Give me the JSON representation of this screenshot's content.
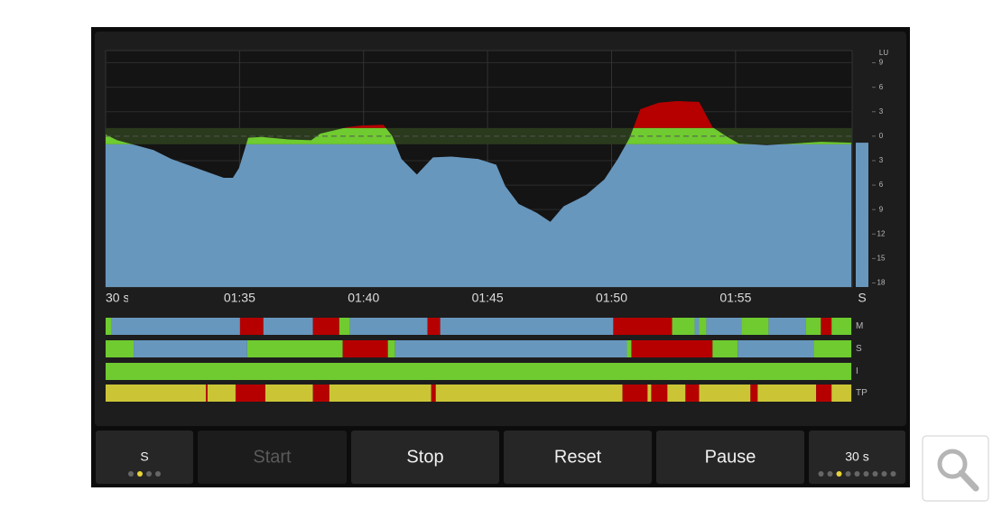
{
  "chart_data": {
    "type": "area",
    "x": [
      89.6,
      90.07,
      90.8,
      91.53,
      92.25,
      92.98,
      93.71,
      94.36,
      94.73,
      94.98,
      95.35,
      95.89,
      96.98,
      97.89,
      98.25,
      98.8,
      99.35,
      99.89,
      100.8,
      101.16,
      101.53,
      102.15,
      102.8,
      103.53,
      104.62,
      105.35,
      105.71,
      106.25,
      106.98,
      107.53,
      108.07,
      108.98,
      109.71,
      110.25,
      110.73,
      111.16,
      111.89,
      112.62,
      113.53,
      114.07,
      114.62,
      115.13,
      116.25,
      117.35,
      118.44,
      119.67
    ],
    "values": [
      0.2,
      -0.5,
      -1.1,
      -1.7,
      -2.8,
      -3.6,
      -4.4,
      -5.1,
      -5.1,
      -3.9,
      -0.2,
      -0.1,
      -0.4,
      -0.5,
      0.3,
      0.7,
      1.1,
      1.3,
      1.4,
      0,
      -2.8,
      -4.7,
      -2.6,
      -2.5,
      -2.8,
      -3.5,
      -6.1,
      -8.3,
      -9.4,
      -10.5,
      -8.6,
      -7.2,
      -5.3,
      -2.8,
      -0.2,
      3.3,
      4.1,
      4.3,
      4.2,
      1.1,
      0,
      -0.9,
      -1.1,
      -0.9,
      -0.7,
      -0.8
    ],
    "xlim": [
      89.6,
      119.7
    ],
    "xticks": [
      {
        "value": 95,
        "label": "01:35"
      },
      {
        "value": 100,
        "label": "01:40"
      },
      {
        "value": 105,
        "label": "01:45"
      },
      {
        "value": 110,
        "label": "01:50"
      },
      {
        "value": 115,
        "label": "01:55"
      }
    ],
    "ylim": [
      -18.5,
      10.5
    ],
    "yticks": [
      9,
      6,
      3,
      0,
      {
        "value": -3,
        "label": "3"
      },
      {
        "value": -6,
        "label": "6"
      },
      {
        "value": -9,
        "label": "9"
      },
      {
        "value": -12,
        "label": "12"
      },
      {
        "value": -15,
        "label": "15"
      },
      {
        "value": -18,
        "label": "18"
      }
    ],
    "y_axis_label": "LU",
    "window_label": "30 s",
    "current_label": "S",
    "current": -0.8,
    "target": 0,
    "target_band": [
      -1,
      1
    ],
    "colors": {
      "below": "#6897bd",
      "in_band": "#6fcb30",
      "above": "#b60000"
    },
    "grid": true
  },
  "meter_bars": {
    "rows": [
      {
        "label": "M",
        "segments": [
          {
            "from": 89.6,
            "to": 89.85,
            "color": "#6fcb30"
          },
          {
            "from": 89.85,
            "to": 95.02,
            "color": "#6897bd"
          },
          {
            "from": 95.02,
            "to": 95.96,
            "color": "#b60000"
          },
          {
            "from": 95.96,
            "to": 97.96,
            "color": "#6897bd"
          },
          {
            "from": 97.96,
            "to": 99.02,
            "color": "#b60000"
          },
          {
            "from": 99.02,
            "to": 99.45,
            "color": "#6fcb30"
          },
          {
            "from": 99.45,
            "to": 102.58,
            "color": "#6897bd"
          },
          {
            "from": 102.58,
            "to": 103.09,
            "color": "#b60000"
          },
          {
            "from": 103.09,
            "to": 110.07,
            "color": "#6897bd"
          },
          {
            "from": 110.07,
            "to": 112.44,
            "color": "#b60000"
          },
          {
            "from": 112.44,
            "to": 113.35,
            "color": "#6fcb30"
          },
          {
            "from": 113.35,
            "to": 113.53,
            "color": "#6897bd"
          },
          {
            "from": 113.53,
            "to": 113.82,
            "color": "#6fcb30"
          },
          {
            "from": 113.82,
            "to": 115.24,
            "color": "#6897bd"
          },
          {
            "from": 115.24,
            "to": 116.33,
            "color": "#6fcb30"
          },
          {
            "from": 116.33,
            "to": 117.82,
            "color": "#6897bd"
          },
          {
            "from": 117.82,
            "to": 118.44,
            "color": "#6fcb30"
          },
          {
            "from": 118.44,
            "to": 118.87,
            "color": "#b60000"
          },
          {
            "from": 118.87,
            "to": 119.67,
            "color": "#6fcb30"
          }
        ]
      },
      {
        "label": "S",
        "segments": [
          {
            "from": 89.6,
            "to": 90.73,
            "color": "#6fcb30"
          },
          {
            "from": 90.73,
            "to": 95.31,
            "color": "#6897bd"
          },
          {
            "from": 95.31,
            "to": 99.16,
            "color": "#6fcb30"
          },
          {
            "from": 99.16,
            "to": 100.98,
            "color": "#b60000"
          },
          {
            "from": 100.98,
            "to": 101.27,
            "color": "#6fcb30"
          },
          {
            "from": 101.27,
            "to": 110.62,
            "color": "#6897bd"
          },
          {
            "from": 110.62,
            "to": 110.8,
            "color": "#6fcb30"
          },
          {
            "from": 110.8,
            "to": 114.07,
            "color": "#b60000"
          },
          {
            "from": 114.07,
            "to": 115.09,
            "color": "#6fcb30"
          },
          {
            "from": 115.09,
            "to": 118.15,
            "color": "#6897bd"
          },
          {
            "from": 118.15,
            "to": 119.67,
            "color": "#6fcb30"
          }
        ]
      },
      {
        "label": "I",
        "segments": [
          {
            "from": 89.6,
            "to": 119.67,
            "color": "#6fcb30"
          }
        ]
      },
      {
        "label": "TP",
        "segments": [
          {
            "from": 89.6,
            "to": 93.64,
            "color": "#cbc536"
          },
          {
            "from": 93.64,
            "to": 93.71,
            "color": "#b60000"
          },
          {
            "from": 93.71,
            "to": 94.84,
            "color": "#cbc536"
          },
          {
            "from": 94.84,
            "to": 96.04,
            "color": "#b60000"
          },
          {
            "from": 96.04,
            "to": 97.96,
            "color": "#cbc536"
          },
          {
            "from": 97.96,
            "to": 98.62,
            "color": "#b60000"
          },
          {
            "from": 98.62,
            "to": 102.73,
            "color": "#cbc536"
          },
          {
            "from": 102.73,
            "to": 102.91,
            "color": "#b60000"
          },
          {
            "from": 102.91,
            "to": 110.44,
            "color": "#cbc536"
          },
          {
            "from": 110.44,
            "to": 111.45,
            "color": "#b60000"
          },
          {
            "from": 111.45,
            "to": 111.6,
            "color": "#cbc536"
          },
          {
            "from": 111.6,
            "to": 112.25,
            "color": "#b60000"
          },
          {
            "from": 112.25,
            "to": 112.98,
            "color": "#cbc536"
          },
          {
            "from": 112.98,
            "to": 113.53,
            "color": "#b60000"
          },
          {
            "from": 113.53,
            "to": 115.6,
            "color": "#cbc536"
          },
          {
            "from": 115.6,
            "to": 115.89,
            "color": "#b60000"
          },
          {
            "from": 115.89,
            "to": 118.25,
            "color": "#cbc536"
          },
          {
            "from": 118.25,
            "to": 118.87,
            "color": "#b60000"
          },
          {
            "from": 118.87,
            "to": 119.67,
            "color": "#cbc536"
          }
        ]
      }
    ]
  },
  "buttons": [
    {
      "label": "S",
      "enabled": true
    },
    {
      "label": "Start",
      "enabled": false
    },
    {
      "label": "Stop",
      "enabled": true
    },
    {
      "label": "Reset",
      "enabled": true
    },
    {
      "label": "Pause",
      "enabled": true
    },
    {
      "label": "30 s",
      "enabled": true
    }
  ]
}
